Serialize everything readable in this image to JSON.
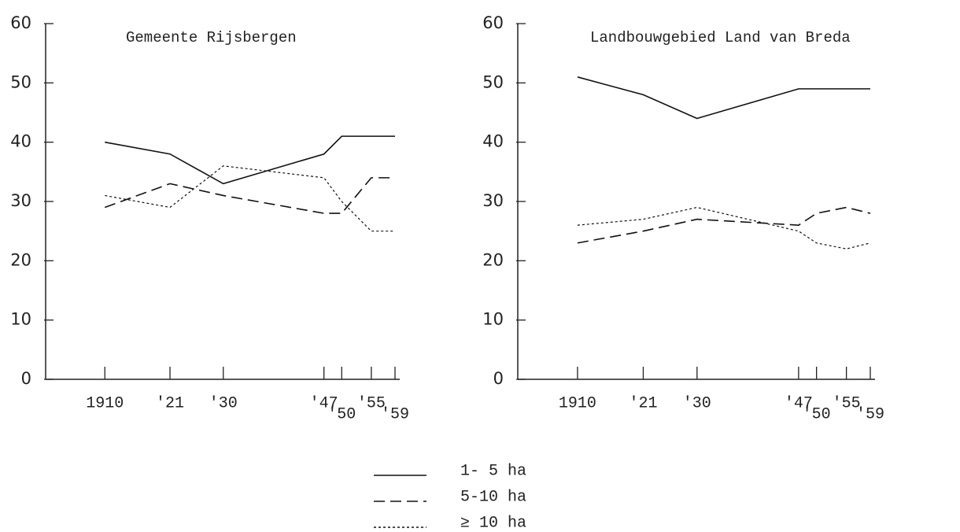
{
  "chart_data": [
    {
      "type": "line",
      "title": "Gemeente Rijsbergen",
      "x": [
        1910,
        1921,
        1930,
        1947,
        1950,
        1955,
        1959
      ],
      "xlim": [
        1900,
        1959
      ],
      "ylim": [
        0,
        60
      ],
      "xticks": [
        1910,
        {
          "value": 1921,
          "label": "'21"
        },
        {
          "value": 1930,
          "label": "'30"
        },
        {
          "value": 1947,
          "label": "'47"
        },
        {
          "value": 1950,
          "label": "'50"
        },
        {
          "value": 1955,
          "label": "'55"
        },
        {
          "value": 1959,
          "label": "'59"
        }
      ],
      "yticks": [
        0,
        10,
        20,
        30,
        40,
        50,
        60
      ],
      "series": [
        {
          "name": "1- 5 ha",
          "color": "#111",
          "dash": "solid",
          "values": [
            40,
            38,
            33,
            38,
            41,
            41,
            41
          ]
        },
        {
          "name": "5-10 ha",
          "color": "#111",
          "dash": "dashed",
          "values": [
            29,
            33,
            31,
            28,
            28,
            34,
            34
          ]
        },
        {
          "name": "≥ 10 ha",
          "color": "#111",
          "dash": "dotted",
          "values": [
            31,
            29,
            36,
            34,
            30,
            25,
            25
          ]
        }
      ]
    },
    {
      "type": "line",
      "title": "Landbouwgebied Land van Breda",
      "x": [
        1910,
        1921,
        1930,
        1947,
        1950,
        1955,
        1959
      ],
      "xlim": [
        1900,
        1959
      ],
      "ylim": [
        0,
        60
      ],
      "xticks": [
        1910,
        {
          "value": 1921,
          "label": "'21"
        },
        {
          "value": 1930,
          "label": "'30"
        },
        {
          "value": 1947,
          "label": "'47"
        },
        {
          "value": 1950,
          "label": "'50"
        },
        {
          "value": 1955,
          "label": "'55"
        },
        {
          "value": 1959,
          "label": "'59"
        }
      ],
      "yticks": [
        0,
        10,
        20,
        30,
        40,
        50,
        60
      ],
      "series": [
        {
          "color": "#111",
          "dash": "solid",
          "values": [
            51,
            48,
            44,
            49,
            49,
            49,
            49
          ]
        },
        {
          "color": "#111",
          "dash": "dashed",
          "values": [
            23,
            25,
            27,
            26,
            28,
            29,
            28
          ]
        },
        {
          "color": "#111",
          "dash": "dotted",
          "values": [
            26,
            27,
            29,
            25,
            23,
            22,
            23
          ]
        }
      ]
    }
  ]
}
